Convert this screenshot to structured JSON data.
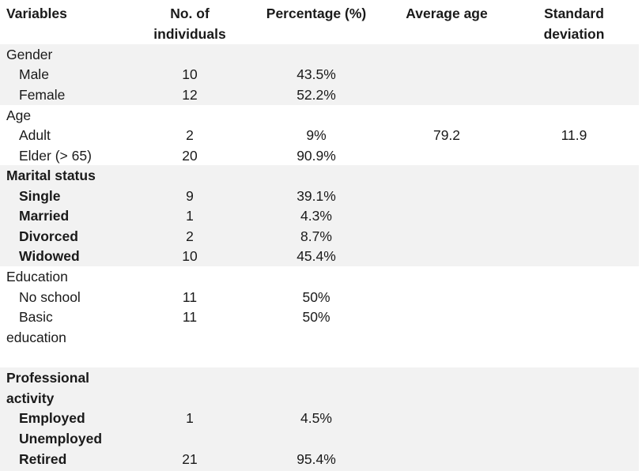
{
  "chart_data": {
    "type": "table",
    "columns": [
      "Variables",
      "No. of individuals",
      "Percentage (%)",
      "Average age",
      "Standard deviation"
    ],
    "sections": [
      {
        "title": "Gender",
        "rows": [
          {
            "label": "Male",
            "n": "10",
            "pct": "43.5%",
            "avg": "",
            "sd": ""
          },
          {
            "label": "Female",
            "n": "12",
            "pct": "52.2%",
            "avg": "",
            "sd": ""
          }
        ]
      },
      {
        "title": "Age",
        "rows": [
          {
            "label": "Adult",
            "n": "2",
            "pct": "9%",
            "avg": "79.2",
            "sd": "11.9"
          },
          {
            "label": "Elder (> 65)",
            "n": "20",
            "pct": "90.9%",
            "avg": "",
            "sd": ""
          }
        ]
      },
      {
        "title": "Marital status",
        "rows": [
          {
            "label": "Single",
            "n": "9",
            "pct": "39.1%",
            "avg": "",
            "sd": ""
          },
          {
            "label": "Married",
            "n": "1",
            "pct": "4.3%",
            "avg": "",
            "sd": ""
          },
          {
            "label": "Divorced",
            "n": "2",
            "pct": "8.7%",
            "avg": "",
            "sd": ""
          },
          {
            "label": "Widowed",
            "n": "10",
            "pct": "45.4%",
            "avg": "",
            "sd": ""
          }
        ]
      },
      {
        "title": "Education",
        "rows": [
          {
            "label": "No school",
            "n": "11",
            "pct": "50%",
            "avg": "",
            "sd": ""
          },
          {
            "label": "Basic",
            "n": "11",
            "pct": "50%",
            "avg": "",
            "sd": ""
          },
          {
            "label": "education",
            "n": "",
            "pct": "",
            "avg": "",
            "sd": ""
          }
        ]
      },
      {
        "title": "Professional",
        "title2": "activity",
        "rows": [
          {
            "label": "Employed",
            "n": "1",
            "pct": "4.5%",
            "avg": "",
            "sd": ""
          },
          {
            "label": "Unemployed",
            "n": "",
            "pct": "",
            "avg": "",
            "sd": ""
          },
          {
            "label": "Retired",
            "n": "21",
            "pct": "95.4%",
            "avg": "",
            "sd": ""
          }
        ]
      }
    ]
  },
  "header": {
    "variables": "Variables",
    "individuals_line1": "No. of",
    "individuals_line2": "individuals",
    "percentage": "Percentage (%)",
    "average_age": "Average age",
    "std_line1": "Standard",
    "std_line2": "deviation"
  }
}
